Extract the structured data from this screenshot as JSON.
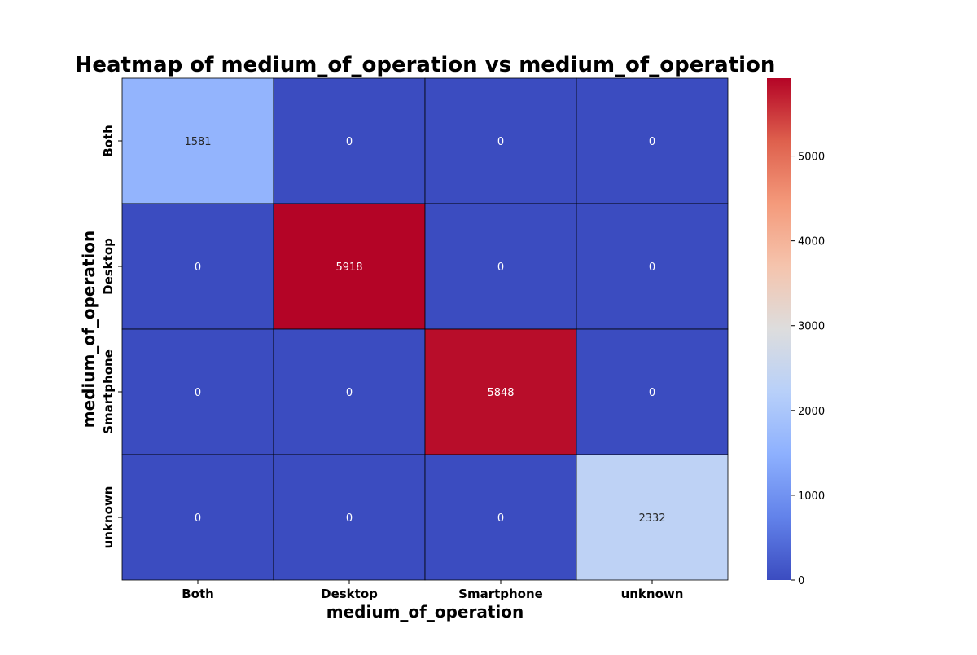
{
  "chart_data": {
    "type": "heatmap",
    "title": "Heatmap of medium_of_operation vs medium_of_operation",
    "xlabel": "medium_of_operation",
    "ylabel": "medium_of_operation",
    "x_categories": [
      "Both",
      "Desktop",
      "Smartphone",
      "unknown"
    ],
    "y_categories": [
      "Both",
      "Desktop",
      "Smartphone",
      "unknown"
    ],
    "values": [
      [
        1581,
        0,
        0,
        0
      ],
      [
        0,
        5918,
        0,
        0
      ],
      [
        0,
        0,
        5848,
        0
      ],
      [
        0,
        0,
        0,
        2332
      ]
    ],
    "colormap": "coolwarm",
    "colorbar": {
      "vmin": 0,
      "vmax": 5918,
      "ticks": [
        0,
        1000,
        2000,
        3000,
        4000,
        5000
      ]
    },
    "annotations": true,
    "cell_border_color": "#000000"
  }
}
